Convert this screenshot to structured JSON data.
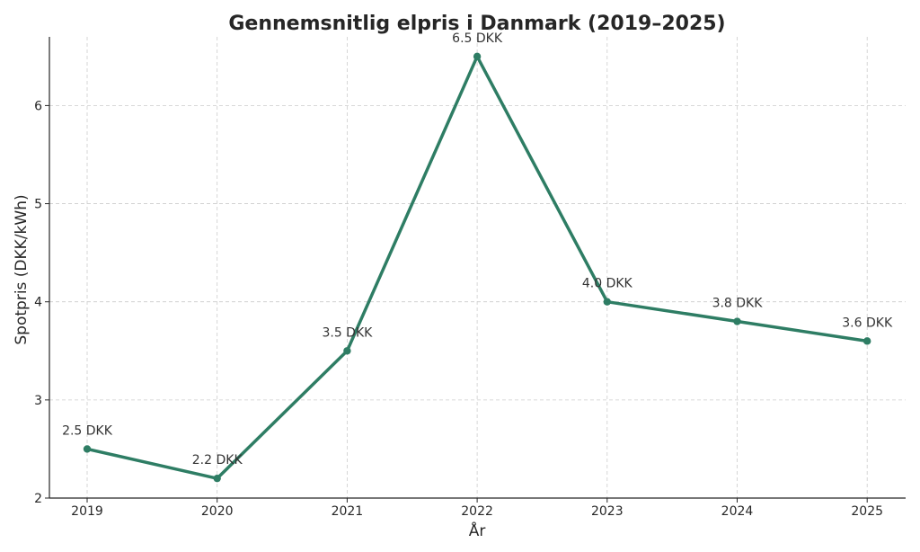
{
  "colors": {
    "line": "#2e7d64",
    "grid": "#cccccc",
    "axis": "#262626"
  },
  "chart_data": {
    "type": "line",
    "title": "Gennemsnitlig elpris i Danmark (2019–2025)",
    "xlabel": "År",
    "ylabel": "Spotpris (DKK/kWh)",
    "categories": [
      "2019",
      "2020",
      "2021",
      "2022",
      "2023",
      "2024",
      "2025"
    ],
    "series": [
      {
        "values": [
          2.5,
          2.2,
          3.5,
          6.5,
          4.0,
          3.8,
          3.6
        ]
      }
    ],
    "data_labels": [
      "2.5 DKK",
      "2.2 DKK",
      "3.5 DKK",
      "6.5 DKK",
      "4.0 DKK",
      "3.8 DKK",
      "3.6 DKK"
    ],
    "yticks": [
      "2",
      "3",
      "4",
      "5",
      "6"
    ],
    "ylim": [
      2.0,
      6.7
    ],
    "grid": true,
    "markers": true
  }
}
